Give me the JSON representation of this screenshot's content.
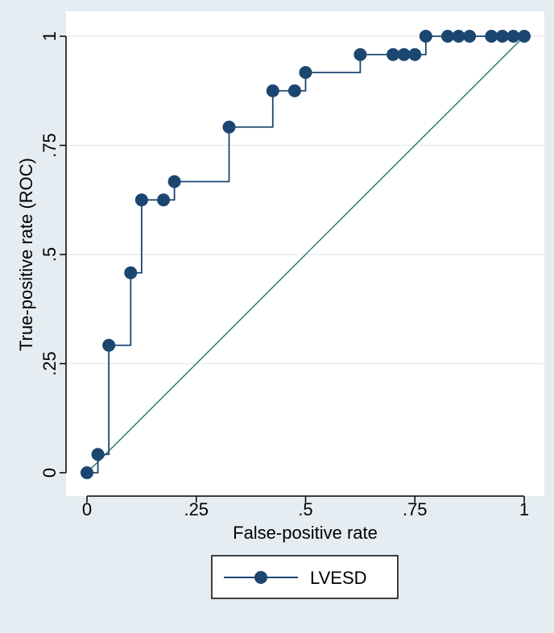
{
  "chart_data": {
    "type": "line",
    "title": "",
    "xlabel": "False-positive rate",
    "ylabel": "True-positive rate (ROC)",
    "xlim": [
      0,
      1
    ],
    "ylim": [
      0,
      1
    ],
    "grid": "horizontal",
    "x_ticks": [
      {
        "value": 0,
        "label": "0"
      },
      {
        "value": 0.25,
        "label": ".25"
      },
      {
        "value": 0.5,
        "label": ".5"
      },
      {
        "value": 0.75,
        "label": ".75"
      },
      {
        "value": 1,
        "label": "1"
      }
    ],
    "y_ticks": [
      {
        "value": 0,
        "label": "0"
      },
      {
        "value": 0.25,
        "label": ".25"
      },
      {
        "value": 0.5,
        "label": ".5"
      },
      {
        "value": 0.75,
        "label": ".75"
      },
      {
        "value": 1,
        "label": "1"
      }
    ],
    "legend": {
      "position": "bottom-center",
      "entries": [
        "LVESD"
      ]
    },
    "series": [
      {
        "name": "LVESD",
        "step": true,
        "color": "#1a4670",
        "points": [
          [
            0,
            0
          ],
          [
            0.025,
            0.042
          ],
          [
            0.05,
            0.292
          ],
          [
            0.1,
            0.458
          ],
          [
            0.125,
            0.625
          ],
          [
            0.175,
            0.625
          ],
          [
            0.2,
            0.667
          ],
          [
            0.325,
            0.792
          ],
          [
            0.425,
            0.875
          ],
          [
            0.475,
            0.875
          ],
          [
            0.5,
            0.917
          ],
          [
            0.625,
            0.958
          ],
          [
            0.7,
            0.958
          ],
          [
            0.725,
            0.958
          ],
          [
            0.75,
            0.958
          ],
          [
            0.775,
            1
          ],
          [
            0.825,
            1
          ],
          [
            0.85,
            1
          ],
          [
            0.875,
            1
          ],
          [
            0.925,
            1
          ],
          [
            0.95,
            1
          ],
          [
            0.975,
            1
          ],
          [
            1,
            1
          ]
        ]
      },
      {
        "name": "reference",
        "color": "#2f7d74",
        "points": [
          [
            0,
            0
          ],
          [
            1,
            1
          ]
        ]
      }
    ],
    "colors": {
      "background": "#e6edf2",
      "plot_area": "#ffffff",
      "grid": "#e7ecf0",
      "axis": "#000000"
    }
  }
}
